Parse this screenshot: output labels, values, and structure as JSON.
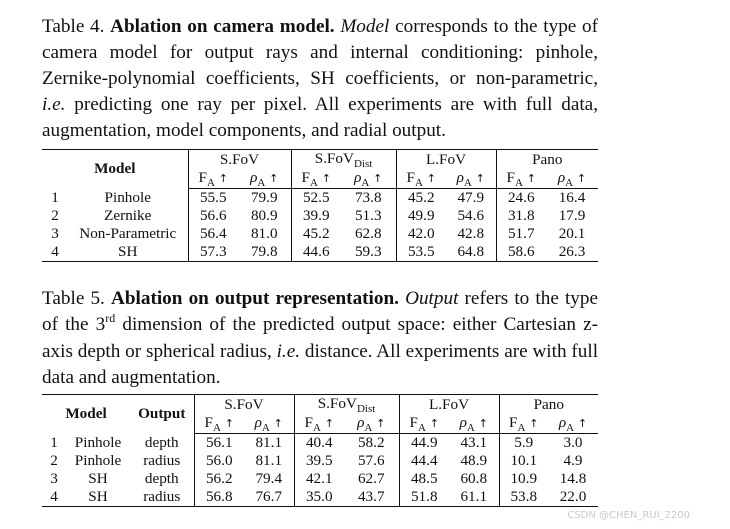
{
  "table4": {
    "caption_label": "Table 4.",
    "caption_title": "Ablation on camera model.",
    "caption_em1": "Model",
    "caption_text1": "corresponds to the type of camera model for output rays and internal conditioning: pinhole, Zernike-polynomial coefficients, SH coefficients, or non-parametric,",
    "caption_em2": "i.e.",
    "caption_text2": "predicting one ray per pixel. All experiments are with full data, augmentation, model components, and radial output.",
    "header_model": "Model",
    "groups": [
      "S.FoV",
      "S.FoV",
      "L.FoV",
      "Pano"
    ],
    "group2_sub": "Dist",
    "metric_f": "F",
    "metric_rho": "ρ",
    "metric_sub": "A",
    "arrow": "↑",
    "rows": [
      {
        "idx": "1",
        "model": "Pinhole",
        "v": [
          "55.5",
          "79.9",
          "52.5",
          "73.8",
          "45.2",
          "47.9",
          "24.6",
          "16.4"
        ]
      },
      {
        "idx": "2",
        "model": "Zernike",
        "v": [
          "56.6",
          "80.9",
          "39.9",
          "51.3",
          "49.9",
          "54.6",
          "31.8",
          "17.9"
        ]
      },
      {
        "idx": "3",
        "model": "Non-Parametric",
        "v": [
          "56.4",
          "81.0",
          "45.2",
          "62.8",
          "42.0",
          "42.8",
          "51.7",
          "20.1"
        ]
      },
      {
        "idx": "4",
        "model": "SH",
        "v": [
          "57.3",
          "79.8",
          "44.6",
          "59.3",
          "53.5",
          "64.8",
          "58.6",
          "26.3"
        ]
      }
    ]
  },
  "table5": {
    "caption_label": "Table 5.",
    "caption_title": "Ablation on output representation.",
    "caption_em1": "Output",
    "caption_text1a": "refers to the type of the 3",
    "caption_sup": "rd",
    "caption_text1b": "dimension of the predicted output space: either Cartesian z-axis depth or spherical radius,",
    "caption_em2": "i.e.",
    "caption_text2": "distance. All experiments are with full data and augmentation.",
    "header_model": "Model",
    "header_output": "Output",
    "groups": [
      "S.FoV",
      "S.FoV",
      "L.FoV",
      "Pano"
    ],
    "group2_sub": "Dist",
    "metric_f": "F",
    "metric_rho": "ρ",
    "metric_sub": "A",
    "arrow": "↑",
    "rows": [
      {
        "idx": "1",
        "model": "Pinhole",
        "output": "depth",
        "v": [
          "56.1",
          "81.1",
          "40.4",
          "58.2",
          "44.9",
          "43.1",
          "5.9",
          "3.0"
        ]
      },
      {
        "idx": "2",
        "model": "Pinhole",
        "output": "radius",
        "v": [
          "56.0",
          "81.1",
          "39.5",
          "57.6",
          "44.4",
          "48.9",
          "10.1",
          "4.9"
        ]
      },
      {
        "idx": "3",
        "model": "SH",
        "output": "depth",
        "v": [
          "56.2",
          "79.4",
          "42.1",
          "62.7",
          "48.5",
          "60.8",
          "10.9",
          "14.8"
        ]
      },
      {
        "idx": "4",
        "model": "SH",
        "output": "radius",
        "v": [
          "56.8",
          "76.7",
          "35.0",
          "43.7",
          "51.8",
          "61.1",
          "53.8",
          "22.0"
        ]
      }
    ]
  },
  "watermark": "CSDN @CHEN_RUI_2200"
}
